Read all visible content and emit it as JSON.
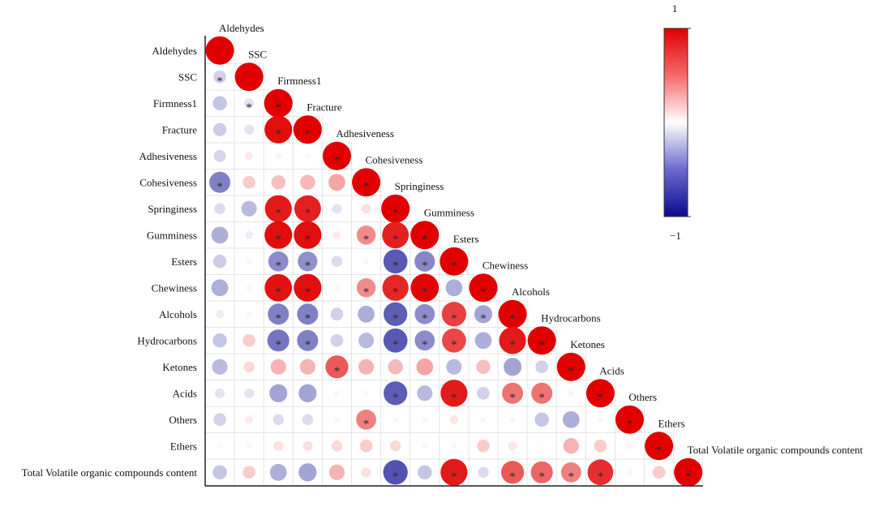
{
  "chart_data": {
    "type": "heatmap",
    "subtype": "lower-triangular correlation matrix (circle size and color = correlation)",
    "variables": [
      "Aldehydes",
      "SSC",
      "Firmness1",
      "Fracture",
      "Adhesiveness",
      "Cohesiveness",
      "Springiness",
      "Gumminess",
      "Esters",
      "Chewiness",
      "Alcohols",
      "Hydrocarbons",
      "Ketones",
      "Acids",
      "Others",
      "Ethers",
      "Total Volatile organic compounds content"
    ],
    "colorbar": {
      "min_label": "−1",
      "max_label": "1",
      "min": -1,
      "max": 1,
      "colors": {
        "negative": "#0b0b8c",
        "neutral": "#ffffff",
        "positive": "#e00000"
      }
    },
    "significance_marker": "*",
    "correlations": [
      [
        1
      ],
      [
        -0.2,
        1
      ],
      [
        -0.25,
        -0.12,
        1
      ],
      [
        -0.22,
        -0.12,
        0.95,
        1
      ],
      [
        -0.18,
        0.08,
        0.05,
        0.03,
        1
      ],
      [
        -0.55,
        0.2,
        0.25,
        0.28,
        0.35,
        1
      ],
      [
        -0.15,
        -0.3,
        0.9,
        0.88,
        -0.12,
        0.12,
        1
      ],
      [
        -0.35,
        -0.08,
        0.95,
        0.95,
        0.08,
        0.45,
        0.88,
        1
      ],
      [
        -0.22,
        0.04,
        -0.5,
        -0.48,
        -0.15,
        0.04,
        -0.72,
        -0.52,
        1
      ],
      [
        -0.35,
        0.04,
        0.93,
        0.95,
        0.04,
        0.45,
        0.85,
        0.98,
        -0.35,
        1
      ],
      [
        -0.08,
        0.04,
        -0.55,
        -0.55,
        -0.2,
        -0.35,
        -0.7,
        -0.5,
        0.75,
        -0.4,
        1
      ],
      [
        -0.25,
        0.2,
        -0.6,
        -0.55,
        -0.2,
        -0.3,
        -0.72,
        -0.5,
        0.72,
        -0.35,
        0.9,
        1
      ],
      [
        -0.3,
        0.15,
        0.3,
        0.3,
        0.65,
        0.3,
        0.28,
        0.35,
        -0.3,
        0.25,
        -0.4,
        -0.2,
        1
      ],
      [
        -0.12,
        -0.12,
        -0.4,
        -0.4,
        0.04,
        0.04,
        -0.7,
        -0.3,
        0.9,
        -0.2,
        0.55,
        0.55,
        -0.04,
        1
      ],
      [
        -0.2,
        0.08,
        -0.15,
        -0.15,
        0.04,
        0.5,
        0.04,
        0.04,
        0.1,
        0.04,
        0.04,
        -0.25,
        -0.35,
        0.04,
        1
      ],
      [
        0.02,
        0.04,
        0.12,
        0.12,
        0.15,
        0.2,
        0.15,
        0.04,
        0.04,
        0.2,
        0.1,
        0.02,
        0.3,
        0.2,
        0.04,
        1
      ],
      [
        -0.25,
        0.2,
        -0.35,
        -0.4,
        0.3,
        0.12,
        -0.75,
        -0.25,
        0.9,
        -0.15,
        0.65,
        0.6,
        0.5,
        0.82,
        0.04,
        0.2,
        1
      ]
    ],
    "significant": [
      [
        1,
        0
      ],
      [
        2,
        1
      ],
      [
        2,
        2
      ],
      [
        3,
        2
      ],
      [
        3,
        3
      ],
      [
        4,
        4
      ],
      [
        5,
        0
      ],
      [
        5,
        5
      ],
      [
        6,
        2
      ],
      [
        6,
        3
      ],
      [
        6,
        6
      ],
      [
        7,
        2
      ],
      [
        7,
        3
      ],
      [
        7,
        5
      ],
      [
        7,
        6
      ],
      [
        7,
        7
      ],
      [
        8,
        2
      ],
      [
        8,
        3
      ],
      [
        8,
        6
      ],
      [
        8,
        7
      ],
      [
        8,
        8
      ],
      [
        9,
        2
      ],
      [
        9,
        3
      ],
      [
        9,
        5
      ],
      [
        9,
        6
      ],
      [
        9,
        7
      ],
      [
        9,
        9
      ],
      [
        10,
        2
      ],
      [
        10,
        3
      ],
      [
        10,
        6
      ],
      [
        10,
        7
      ],
      [
        10,
        8
      ],
      [
        10,
        9
      ],
      [
        10,
        10
      ],
      [
        11,
        2
      ],
      [
        11,
        3
      ],
      [
        11,
        6
      ],
      [
        11,
        7
      ],
      [
        11,
        8
      ],
      [
        11,
        10
      ],
      [
        11,
        11
      ],
      [
        12,
        4
      ],
      [
        12,
        12
      ],
      [
        13,
        6
      ],
      [
        13,
        8
      ],
      [
        13,
        10
      ],
      [
        13,
        11
      ],
      [
        13,
        13
      ],
      [
        14,
        5
      ],
      [
        14,
        14
      ],
      [
        15,
        15
      ],
      [
        16,
        6
      ],
      [
        16,
        8
      ],
      [
        16,
        10
      ],
      [
        16,
        11
      ],
      [
        16,
        12
      ],
      [
        16,
        13
      ],
      [
        16,
        16
      ]
    ]
  }
}
